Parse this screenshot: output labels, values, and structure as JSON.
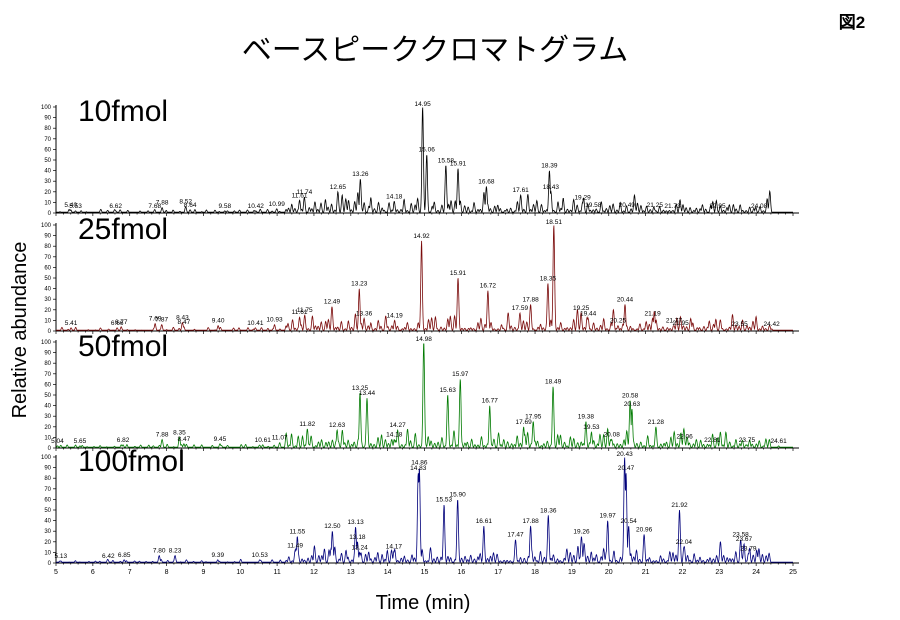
{
  "figure_label": "図2",
  "chart_data": {
    "type": "line",
    "title": "ベースピーククロマトグラム",
    "xlabel": "Time (min)",
    "ylabel": "Relative abundance",
    "xlim": [
      5,
      25
    ],
    "ylim": [
      0,
      100
    ],
    "x_ticks": [
      5,
      6,
      7,
      8,
      9,
      10,
      11,
      12,
      13,
      14,
      15,
      16,
      17,
      18,
      19,
      20,
      21,
      22,
      23,
      24,
      25
    ],
    "y_ticks": [
      0,
      10,
      20,
      30,
      40,
      50,
      60,
      70,
      80,
      90,
      100
    ],
    "panels": [
      {
        "name": "10fmol",
        "color": "#000000",
        "peaks": [
          {
            "x": 5.4,
            "y": 3
          },
          {
            "x": 5.53,
            "y": 2
          },
          {
            "x": 6.62,
            "y": 2
          },
          {
            "x": 7.68,
            "y": 2
          },
          {
            "x": 7.88,
            "y": 5
          },
          {
            "x": 8.52,
            "y": 6
          },
          {
            "x": 8.64,
            "y": 3
          },
          {
            "x": 9.58,
            "y": 2
          },
          {
            "x": 10.42,
            "y": 2
          },
          {
            "x": 10.99,
            "y": 4
          },
          {
            "x": 11.61,
            "y": 12
          },
          {
            "x": 11.74,
            "y": 15
          },
          {
            "x": 12.65,
            "y": 20
          },
          {
            "x": 13.26,
            "y": 32
          },
          {
            "x": 14.18,
            "y": 11
          },
          {
            "x": 14.95,
            "y": 100
          },
          {
            "x": 15.06,
            "y": 55
          },
          {
            "x": 15.58,
            "y": 45
          },
          {
            "x": 15.91,
            "y": 42
          },
          {
            "x": 16.68,
            "y": 25
          },
          {
            "x": 17.61,
            "y": 17
          },
          {
            "x": 18.39,
            "y": 40
          },
          {
            "x": 18.43,
            "y": 20
          },
          {
            "x": 19.29,
            "y": 10
          },
          {
            "x": 19.58,
            "y": 3
          },
          {
            "x": 20.49,
            "y": 3
          },
          {
            "x": 21.25,
            "y": 3
          },
          {
            "x": 21.73,
            "y": 2
          },
          {
            "x": 22.95,
            "y": 2
          },
          {
            "x": 24.08,
            "y": 2
          }
        ]
      },
      {
        "name": "25fmol",
        "color": "#7a0a0a",
        "peaks": [
          {
            "x": 5.41,
            "y": 3
          },
          {
            "x": 6.66,
            "y": 3
          },
          {
            "x": 6.77,
            "y": 4
          },
          {
            "x": 7.69,
            "y": 7
          },
          {
            "x": 7.87,
            "y": 6
          },
          {
            "x": 8.43,
            "y": 8
          },
          {
            "x": 8.47,
            "y": 4
          },
          {
            "x": 9.4,
            "y": 5
          },
          {
            "x": 10.41,
            "y": 3
          },
          {
            "x": 10.93,
            "y": 6
          },
          {
            "x": 11.61,
            "y": 13
          },
          {
            "x": 11.75,
            "y": 15
          },
          {
            "x": 12.49,
            "y": 23
          },
          {
            "x": 13.23,
            "y": 40
          },
          {
            "x": 13.36,
            "y": 12
          },
          {
            "x": 14.19,
            "y": 10
          },
          {
            "x": 14.92,
            "y": 85
          },
          {
            "x": 15.91,
            "y": 50
          },
          {
            "x": 16.72,
            "y": 38
          },
          {
            "x": 17.59,
            "y": 17
          },
          {
            "x": 17.88,
            "y": 25
          },
          {
            "x": 18.35,
            "y": 45
          },
          {
            "x": 18.51,
            "y": 100
          },
          {
            "x": 19.25,
            "y": 17
          },
          {
            "x": 19.44,
            "y": 12
          },
          {
            "x": 20.25,
            "y": 5
          },
          {
            "x": 20.44,
            "y": 25
          },
          {
            "x": 21.19,
            "y": 12
          },
          {
            "x": 21.77,
            "y": 5
          },
          {
            "x": 21.95,
            "y": 3
          },
          {
            "x": 23.55,
            "y": 2
          },
          {
            "x": 24.42,
            "y": 2
          }
        ]
      },
      {
        "name": "50fmol",
        "color": "#007a00",
        "peaks": [
          {
            "x": 5.04,
            "y": 2
          },
          {
            "x": 5.65,
            "y": 2
          },
          {
            "x": 6.82,
            "y": 3
          },
          {
            "x": 7.88,
            "y": 8
          },
          {
            "x": 8.35,
            "y": 10
          },
          {
            "x": 8.47,
            "y": 4
          },
          {
            "x": 9.45,
            "y": 4
          },
          {
            "x": 10.61,
            "y": 3
          },
          {
            "x": 11.07,
            "y": 5
          },
          {
            "x": 11.82,
            "y": 18
          },
          {
            "x": 12.63,
            "y": 17
          },
          {
            "x": 13.25,
            "y": 52
          },
          {
            "x": 13.44,
            "y": 47
          },
          {
            "x": 14.18,
            "y": 8
          },
          {
            "x": 14.27,
            "y": 17
          },
          {
            "x": 14.98,
            "y": 100
          },
          {
            "x": 15.63,
            "y": 50
          },
          {
            "x": 15.97,
            "y": 65
          },
          {
            "x": 16.77,
            "y": 40
          },
          {
            "x": 17.69,
            "y": 20
          },
          {
            "x": 17.95,
            "y": 25
          },
          {
            "x": 18.49,
            "y": 58
          },
          {
            "x": 19.38,
            "y": 25
          },
          {
            "x": 19.53,
            "y": 15
          },
          {
            "x": 20.08,
            "y": 8
          },
          {
            "x": 20.58,
            "y": 45
          },
          {
            "x": 20.63,
            "y": 37
          },
          {
            "x": 21.28,
            "y": 20
          },
          {
            "x": 22.06,
            "y": 6
          },
          {
            "x": 22.81,
            "y": 3
          },
          {
            "x": 23.75,
            "y": 3
          },
          {
            "x": 24.61,
            "y": 2
          }
        ]
      },
      {
        "name": "100fmol",
        "color": "#00007a",
        "peaks": [
          {
            "x": 5.13,
            "y": 2
          },
          {
            "x": 6.42,
            "y": 2
          },
          {
            "x": 6.85,
            "y": 3
          },
          {
            "x": 7.8,
            "y": 7
          },
          {
            "x": 8.23,
            "y": 7
          },
          {
            "x": 9.39,
            "y": 3
          },
          {
            "x": 10.53,
            "y": 3
          },
          {
            "x": 11.49,
            "y": 12
          },
          {
            "x": 11.55,
            "y": 25
          },
          {
            "x": 12.5,
            "y": 30
          },
          {
            "x": 13.13,
            "y": 34
          },
          {
            "x": 13.18,
            "y": 20
          },
          {
            "x": 13.24,
            "y": 10
          },
          {
            "x": 14.17,
            "y": 11
          },
          {
            "x": 14.83,
            "y": 85
          },
          {
            "x": 14.86,
            "y": 90
          },
          {
            "x": 15.53,
            "y": 55
          },
          {
            "x": 15.9,
            "y": 60
          },
          {
            "x": 16.61,
            "y": 35
          },
          {
            "x": 17.47,
            "y": 22
          },
          {
            "x": 17.88,
            "y": 35
          },
          {
            "x": 18.36,
            "y": 45
          },
          {
            "x": 19.26,
            "y": 25
          },
          {
            "x": 19.97,
            "y": 40
          },
          {
            "x": 20.43,
            "y": 100
          },
          {
            "x": 20.47,
            "y": 85
          },
          {
            "x": 20.54,
            "y": 35
          },
          {
            "x": 20.96,
            "y": 27
          },
          {
            "x": 21.92,
            "y": 50
          },
          {
            "x": 22.04,
            "y": 15
          },
          {
            "x": 23.58,
            "y": 22
          },
          {
            "x": 23.67,
            "y": 18
          },
          {
            "x": 23.79,
            "y": 9
          }
        ]
      }
    ]
  }
}
